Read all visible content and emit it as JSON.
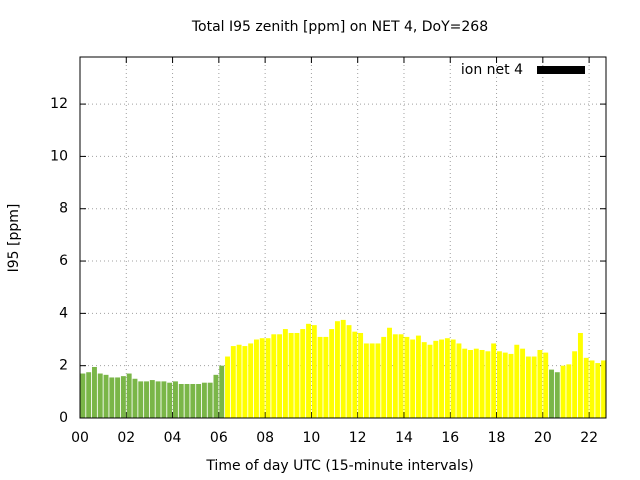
{
  "chart_data": {
    "type": "bar",
    "title": "Total I95 zenith [ppm] on NET 4, DoY=268",
    "xlabel": "Time of day UTC (15-minute intervals)",
    "ylabel": "I95 [ppm]",
    "x": [
      0.125,
      0.375,
      0.625,
      0.875,
      1.125,
      1.375,
      1.625,
      1.875,
      2.125,
      2.375,
      2.625,
      2.875,
      3.125,
      3.375,
      3.625,
      3.875,
      4.125,
      4.375,
      4.625,
      4.875,
      5.125,
      5.375,
      5.625,
      5.875,
      6.125,
      6.375,
      6.625,
      6.875,
      7.125,
      7.375,
      7.625,
      7.875,
      8.125,
      8.375,
      8.625,
      8.875,
      9.125,
      9.375,
      9.625,
      9.875,
      10.125,
      10.375,
      10.625,
      10.875,
      11.125,
      11.375,
      11.625,
      11.875,
      12.125,
      12.375,
      12.625,
      12.875,
      13.125,
      13.375,
      13.625,
      13.875,
      14.125,
      14.375,
      14.625,
      14.875,
      15.125,
      15.375,
      15.625,
      15.875,
      16.125,
      16.375,
      16.625,
      16.875,
      17.125,
      17.375,
      17.625,
      17.875,
      18.125,
      18.375,
      18.625,
      18.875,
      19.125,
      19.375,
      19.625,
      19.875,
      20.125,
      20.375,
      20.625,
      20.875,
      21.125,
      21.375,
      21.625,
      21.875,
      22.125,
      22.375,
      22.625
    ],
    "series": [
      {
        "name": "ion net 4",
        "color": "#000000",
        "values": [
          1.7,
          1.75,
          1.95,
          1.7,
          1.65,
          1.55,
          1.55,
          1.6,
          1.7,
          1.5,
          1.4,
          1.4,
          1.45,
          1.4,
          1.4,
          1.35,
          1.4,
          1.3,
          1.3,
          1.3,
          1.3,
          1.35,
          1.35,
          1.65,
          2.0,
          2.35,
          2.75,
          2.8,
          2.75,
          2.85,
          3.0,
          3.05,
          3.05,
          3.2,
          3.2,
          3.4,
          3.25,
          3.25,
          3.4,
          3.6,
          3.55,
          3.1,
          3.1,
          3.4,
          3.7,
          3.75,
          3.55,
          3.3,
          3.25,
          2.85,
          2.85,
          2.85,
          3.1,
          3.45,
          3.2,
          3.2,
          3.1,
          3.0,
          3.15,
          2.9,
          2.8,
          2.95,
          3.0,
          3.05,
          3.0,
          2.85,
          2.65,
          2.6,
          2.65,
          2.6,
          2.55,
          2.85,
          2.55,
          2.5,
          2.45,
          2.8,
          2.65,
          2.35,
          2.35,
          2.6,
          2.5,
          1.85,
          1.75,
          2.0,
          2.05,
          2.55,
          3.25,
          2.3,
          2.2,
          2.1,
          2.2
        ],
        "bar_colors": [
          "#7ab648",
          "#7ab648",
          "#7ab648",
          "#7ab648",
          "#7ab648",
          "#7ab648",
          "#7ab648",
          "#7ab648",
          "#7ab648",
          "#7ab648",
          "#7ab648",
          "#7ab648",
          "#7ab648",
          "#7ab648",
          "#7ab648",
          "#7ab648",
          "#7ab648",
          "#7ab648",
          "#7ab648",
          "#7ab648",
          "#7ab648",
          "#7ab648",
          "#7ab648",
          "#7ab648",
          "#7ab648",
          "#ffff00",
          "#ffff00",
          "#ffff00",
          "#ffff00",
          "#ffff00",
          "#ffff00",
          "#ffff00",
          "#ffff00",
          "#ffff00",
          "#ffff00",
          "#ffff00",
          "#ffff00",
          "#ffff00",
          "#ffff00",
          "#ffff00",
          "#ffff00",
          "#ffff00",
          "#ffff00",
          "#ffff00",
          "#ffff00",
          "#ffff00",
          "#ffff00",
          "#ffff00",
          "#ffff00",
          "#ffff00",
          "#ffff00",
          "#ffff00",
          "#ffff00",
          "#ffff00",
          "#ffff00",
          "#ffff00",
          "#ffff00",
          "#ffff00",
          "#ffff00",
          "#ffff00",
          "#ffff00",
          "#ffff00",
          "#ffff00",
          "#ffff00",
          "#ffff00",
          "#ffff00",
          "#ffff00",
          "#ffff00",
          "#ffff00",
          "#ffff00",
          "#ffff00",
          "#ffff00",
          "#ffff00",
          "#ffff00",
          "#ffff00",
          "#ffff00",
          "#ffff00",
          "#ffff00",
          "#ffff00",
          "#ffff00",
          "#ffff00",
          "#7ab648",
          "#7ab648",
          "#ffff00",
          "#ffff00",
          "#ffff00",
          "#ffff00",
          "#ffff00",
          "#ffff00",
          "#ffff00",
          "#ffff00"
        ]
      }
    ],
    "xlim": [
      0,
      22.73
    ],
    "xticks": [
      {
        "value": 0,
        "label": "00"
      },
      {
        "value": 2,
        "label": "02"
      },
      {
        "value": 4,
        "label": "04"
      },
      {
        "value": 6,
        "label": "06"
      },
      {
        "value": 8,
        "label": "08"
      },
      {
        "value": 10,
        "label": "10"
      },
      {
        "value": 12,
        "label": "12"
      },
      {
        "value": 14,
        "label": "14"
      },
      {
        "value": 16,
        "label": "16"
      },
      {
        "value": 18,
        "label": "18"
      },
      {
        "value": 20,
        "label": "20"
      },
      {
        "value": 22,
        "label": "22"
      }
    ],
    "ylim": [
      0,
      13.8
    ],
    "yticks": [
      0,
      2,
      4,
      6,
      8,
      10,
      12
    ],
    "grid": true,
    "legend": "top-right"
  }
}
